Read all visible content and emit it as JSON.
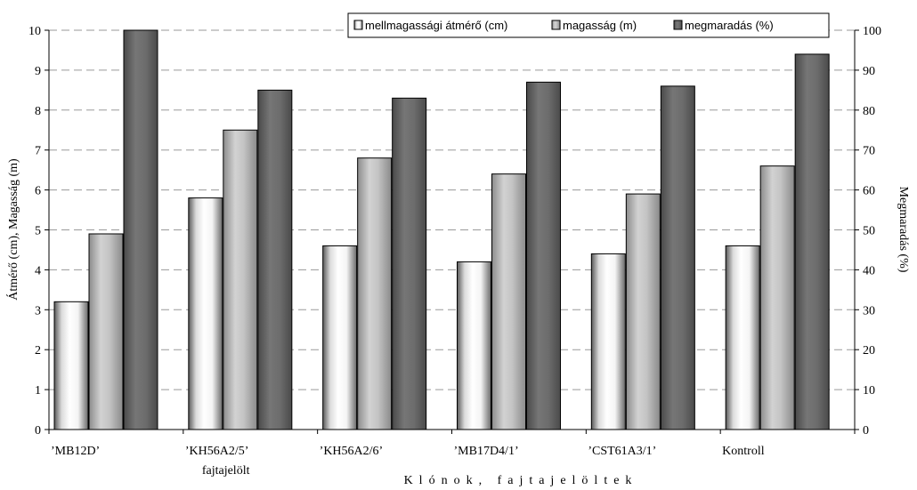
{
  "chart_data": {
    "type": "bar",
    "categories": [
      "’MB12D’",
      "’KH56A2/5’",
      "’KH56A2/6’",
      "’MB17D4/1’",
      "’CST61A3/1’",
      "Kontroll"
    ],
    "category_sublabels": [
      "",
      "fajtajelölt",
      "",
      "",
      "",
      ""
    ],
    "series": [
      {
        "name": "mellmagassági átmérő (cm)",
        "axis": "left",
        "values": [
          3.2,
          5.8,
          4.6,
          4.2,
          4.4,
          4.6
        ]
      },
      {
        "name": "magasság (m)",
        "axis": "left",
        "values": [
          4.9,
          7.5,
          6.8,
          6.4,
          5.9,
          6.6
        ]
      },
      {
        "name": "megmaradás (%)",
        "axis": "right",
        "values": [
          100,
          85,
          83,
          87,
          86,
          94
        ]
      }
    ],
    "xlabel": "Klónok, fajtajelöltek",
    "ylabel": "Átmérő (cm), Magasság (m)",
    "y2label": "Megmaradás (%)",
    "ylim": [
      0,
      10
    ],
    "y2lim": [
      0,
      100
    ],
    "yticks": [
      0,
      1,
      2,
      3,
      4,
      5,
      6,
      7,
      8,
      9,
      10
    ],
    "y2ticks": [
      0,
      10,
      20,
      30,
      40,
      50,
      60,
      70,
      80,
      90,
      100
    ],
    "grid": "horizontal dashed",
    "legend_position": "top-right",
    "colors": {
      "series_dark": "#666666",
      "series_light": "#bdbdbd",
      "series_white": "#ffffff",
      "grid": "#9a9a9a"
    }
  }
}
